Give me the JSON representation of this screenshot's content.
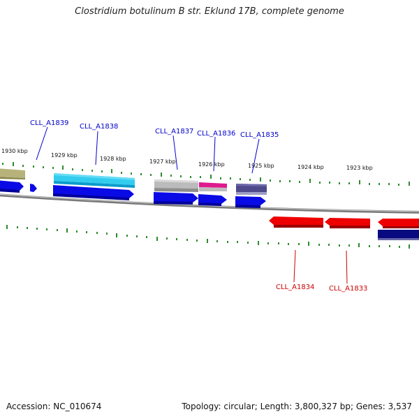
{
  "title": "Clostridium botulinum B str. Eklund 17B, complete genome",
  "footer": {
    "accession": "Accession: NC_010674",
    "summary": "Topology: circular; Length: 3,800,327 bp; Genes: 3,537"
  },
  "scale_labels": [
    "1930 kbp",
    "1929 kbp",
    "1928 kbp",
    "1927 kbp",
    "1926 kbp",
    "1925 kbp",
    "1924 kbp",
    "1923 kbp"
  ],
  "gene_labels_top": [
    "CLL_A1839",
    "CLL_A1838",
    "CLL_A1837",
    "CLL_A1836",
    "CLL_A1835"
  ],
  "gene_labels_bottom": [
    "CLL_A1834",
    "CLL_A1833"
  ],
  "colors": {
    "forward_cds": "#0000ee",
    "reverse_cds": "#ee0000",
    "backbone": "#888888",
    "ticks": "#228b22",
    "label_forward": "#0000cc",
    "label_reverse": "#cc0000"
  }
}
